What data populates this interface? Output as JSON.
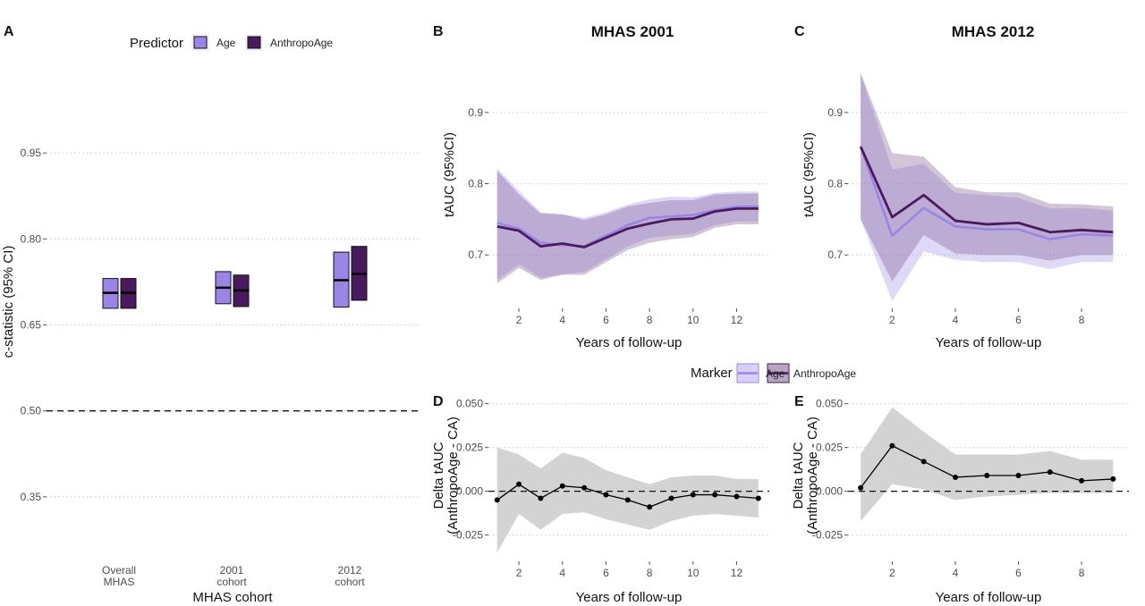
{
  "colors": {
    "age": "#9a85e6",
    "anthropoage": "#4a1a5e",
    "age_band": "#b9a9ee",
    "anthropoage_band": "#7b5a8c",
    "delta_band": "#d3d3d3"
  },
  "legend_a": {
    "title": "Predictor",
    "items": [
      "Age",
      "AnthropoAge"
    ]
  },
  "legend_bc": {
    "title": "Marker",
    "items": [
      "Age",
      "AnthropoAge"
    ]
  },
  "chart_data": [
    {
      "panel": "A",
      "type": "interval",
      "title": "",
      "xlabel": "MHAS cohort",
      "ylabel": "c-statistic (95% CI)",
      "categories": [
        [
          "Overall",
          "MHAS"
        ],
        [
          "2001",
          "cohort"
        ],
        [
          "2012",
          "cohort"
        ]
      ],
      "ylim": [
        0.25,
        1.1
      ],
      "yticks": [
        0.35,
        0.5,
        0.65,
        0.8,
        0.95
      ],
      "ytick_labels": [
        "0.35",
        "0.50",
        "0.65",
        "0.80",
        "0.95"
      ],
      "reference_line": 0.5,
      "series": [
        {
          "name": "Age",
          "estimate": [
            0.706,
            0.715,
            0.728
          ],
          "lower": [
            0.679,
            0.687,
            0.681
          ],
          "upper": [
            0.731,
            0.743,
            0.777
          ]
        },
        {
          "name": "AnthropoAge",
          "estimate": [
            0.706,
            0.71,
            0.739
          ],
          "lower": [
            0.679,
            0.682,
            0.693
          ],
          "upper": [
            0.731,
            0.737,
            0.787
          ]
        }
      ]
    },
    {
      "panel": "B",
      "type": "line",
      "title": "MHAS 2001",
      "xlabel": "Years of follow-up",
      "ylabel": "tAUC (95%CI)",
      "xlim": [
        0.6,
        13.5
      ],
      "ylim": [
        0.625,
        0.97
      ],
      "xticks": [
        2,
        4,
        6,
        8,
        10,
        12
      ],
      "yticks": [
        0.7,
        0.8,
        0.9
      ],
      "x": [
        1,
        2,
        3,
        4,
        5,
        6,
        7,
        8,
        9,
        10,
        11,
        12,
        13
      ],
      "series": [
        {
          "name": "Age",
          "values": [
            0.745,
            0.737,
            0.717,
            0.714,
            0.712,
            0.727,
            0.742,
            0.752,
            0.754,
            0.756,
            0.763,
            0.768,
            0.768
          ],
          "lower": [
            0.665,
            0.687,
            0.668,
            0.673,
            0.676,
            0.694,
            0.712,
            0.724,
            0.727,
            0.73,
            0.742,
            0.747,
            0.747
          ],
          "upper": [
            0.822,
            0.79,
            0.76,
            0.757,
            0.752,
            0.76,
            0.771,
            0.778,
            0.782,
            0.781,
            0.787,
            0.789,
            0.789
          ]
        },
        {
          "name": "AnthropoAge",
          "values": [
            0.74,
            0.734,
            0.712,
            0.716,
            0.711,
            0.724,
            0.737,
            0.744,
            0.75,
            0.751,
            0.761,
            0.765,
            0.765
          ],
          "lower": [
            0.66,
            0.682,
            0.665,
            0.672,
            0.672,
            0.69,
            0.707,
            0.717,
            0.722,
            0.725,
            0.738,
            0.743,
            0.743
          ],
          "upper": [
            0.818,
            0.785,
            0.758,
            0.757,
            0.749,
            0.757,
            0.768,
            0.773,
            0.777,
            0.777,
            0.785,
            0.786,
            0.786
          ]
        }
      ]
    },
    {
      "panel": "C",
      "type": "line",
      "title": "MHAS 2012",
      "xlabel": "Years of follow-up",
      "ylabel": "tAUC (95%CI)",
      "xlim": [
        0.6,
        9.5
      ],
      "ylim": [
        0.625,
        0.97
      ],
      "xticks": [
        2,
        4,
        6,
        8
      ],
      "yticks": [
        0.7,
        0.8,
        0.9
      ],
      "x": [
        1,
        2,
        3,
        4,
        5,
        6,
        7,
        8,
        9
      ],
      "series": [
        {
          "name": "Age",
          "values": [
            0.852,
            0.727,
            0.766,
            0.74,
            0.736,
            0.736,
            0.722,
            0.729,
            0.727
          ],
          "lower": [
            0.75,
            0.635,
            0.705,
            0.693,
            0.69,
            0.69,
            0.68,
            0.69,
            0.69
          ],
          "upper": [
            0.955,
            0.82,
            0.828,
            0.787,
            0.784,
            0.78,
            0.765,
            0.766,
            0.762
          ]
        },
        {
          "name": "AnthropoAge",
          "values": [
            0.852,
            0.753,
            0.784,
            0.748,
            0.743,
            0.745,
            0.732,
            0.735,
            0.732
          ],
          "lower": [
            0.75,
            0.663,
            0.728,
            0.702,
            0.7,
            0.7,
            0.692,
            0.7,
            0.7
          ],
          "upper": [
            0.955,
            0.843,
            0.838,
            0.795,
            0.788,
            0.788,
            0.772,
            0.771,
            0.768
          ]
        }
      ]
    },
    {
      "panel": "D",
      "type": "line",
      "title": "",
      "xlabel": "Years of follow-up",
      "ylabel": [
        "Delta tAUC",
        "(AnthropoAge - CA)"
      ],
      "xlim": [
        0.6,
        13.5
      ],
      "ylim": [
        -0.04,
        0.058
      ],
      "xticks": [
        2,
        4,
        6,
        8,
        10,
        12
      ],
      "yticks": [
        -0.025,
        0,
        0.025,
        0.05
      ],
      "ytick_labels": [
        "-0.025",
        "0.000",
        "0.025",
        "0.050"
      ],
      "reference_line": 0,
      "x": [
        1,
        2,
        3,
        4,
        5,
        6,
        7,
        8,
        9,
        10,
        11,
        12,
        13
      ],
      "values": [
        -0.005,
        0.004,
        -0.004,
        0.003,
        0.002,
        -0.002,
        -0.005,
        -0.009,
        -0.004,
        -0.002,
        -0.002,
        -0.003,
        -0.004
      ],
      "lower": [
        -0.035,
        -0.013,
        -0.022,
        -0.013,
        -0.012,
        -0.016,
        -0.019,
        -0.022,
        -0.017,
        -0.014,
        -0.013,
        -0.014,
        -0.015
      ],
      "upper": [
        0.025,
        0.021,
        0.013,
        0.022,
        0.019,
        0.012,
        0.008,
        0.004,
        0.008,
        0.009,
        0.009,
        0.007,
        0.007
      ]
    },
    {
      "panel": "E",
      "type": "line",
      "title": "",
      "xlabel": "Years of follow-up",
      "ylabel": [
        "Delta tAUC",
        "(AnthropoAge - CA)"
      ],
      "xlim": [
        0.6,
        9.5
      ],
      "ylim": [
        -0.04,
        0.058
      ],
      "xticks": [
        2,
        4,
        6,
        8
      ],
      "yticks": [
        -0.025,
        0,
        0.025,
        0.05
      ],
      "ytick_labels": [
        "-0.025",
        "0.000",
        "0.025",
        "0.050"
      ],
      "reference_line": 0,
      "x": [
        1,
        2,
        3,
        4,
        5,
        6,
        7,
        8,
        9
      ],
      "values": [
        0.002,
        0.026,
        0.017,
        0.008,
        0.009,
        0.009,
        0.011,
        0.006,
        0.007
      ],
      "lower": [
        -0.017,
        0.004,
        0.001,
        -0.005,
        -0.003,
        -0.002,
        -0.001,
        -0.001,
        -0.001
      ],
      "upper": [
        0.021,
        0.048,
        0.034,
        0.021,
        0.021,
        0.021,
        0.023,
        0.018,
        0.018
      ]
    }
  ]
}
